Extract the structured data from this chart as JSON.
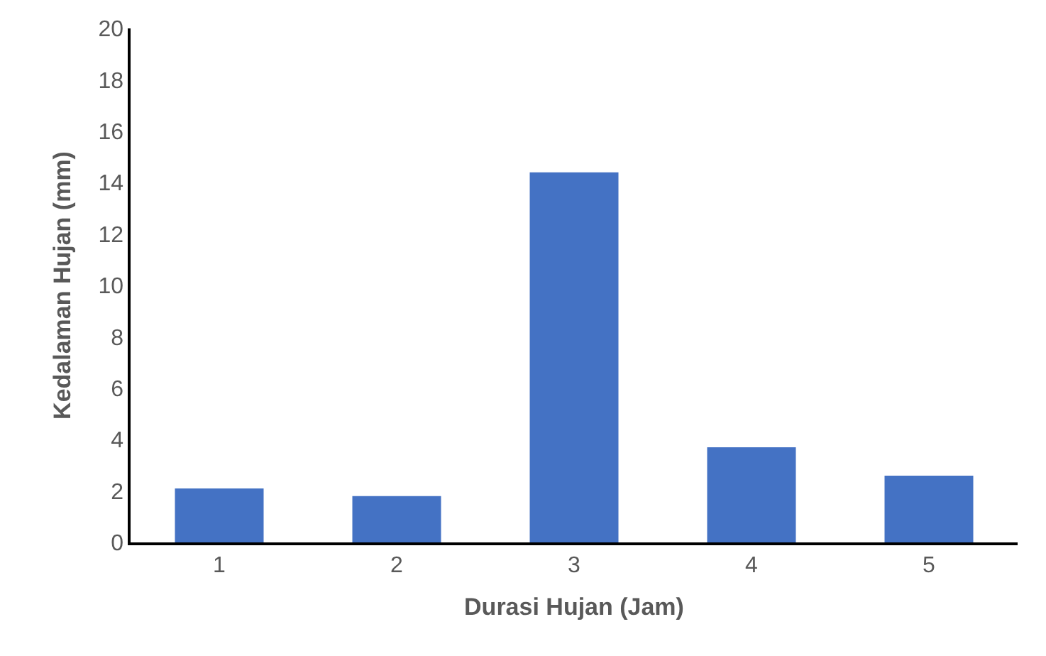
{
  "chart_data": {
    "type": "bar",
    "xlabel": "Durasi Hujan (Jam)",
    "ylabel": "Kedalaman Hujan (mm)",
    "categories": [
      "1",
      "2",
      "3",
      "4",
      "5"
    ],
    "values": [
      2.1,
      1.8,
      14.4,
      3.7,
      2.6
    ],
    "color": "#4472c4",
    "ylim": [
      0,
      20
    ],
    "yticks": [
      0,
      2,
      4,
      6,
      8,
      10,
      12,
      14,
      16,
      18,
      20
    ]
  }
}
